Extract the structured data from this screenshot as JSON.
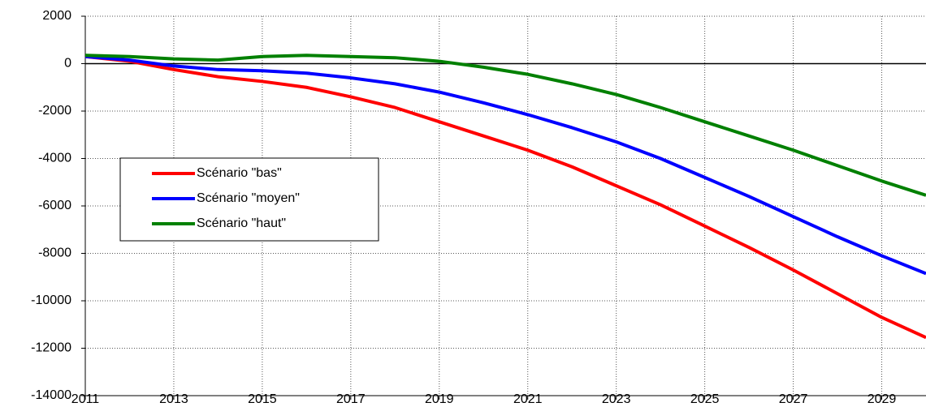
{
  "chart_data": {
    "type": "line",
    "x": [
      2011,
      2012,
      2013,
      2014,
      2015,
      2016,
      2017,
      2018,
      2019,
      2020,
      2021,
      2022,
      2023,
      2024,
      2025,
      2026,
      2027,
      2028,
      2029,
      2030
    ],
    "series": [
      {
        "name": "Scénario \"bas\"",
        "color": "#ff0000",
        "values": [
          300,
          100,
          -250,
          -550,
          -750,
          -1000,
          -1400,
          -1850,
          -2450,
          -3050,
          -3650,
          -4350,
          -5150,
          -5950,
          -6850,
          -7750,
          -8700,
          -9700,
          -10700,
          -11550
        ]
      },
      {
        "name": "Scénario \"moyen\"",
        "color": "#0000ff",
        "values": [
          300,
          150,
          -100,
          -250,
          -300,
          -400,
          -600,
          -850,
          -1200,
          -1650,
          -2150,
          -2700,
          -3300,
          -4000,
          -4800,
          -5600,
          -6450,
          -7300,
          -8100,
          -8850
        ]
      },
      {
        "name": "Scénario \"haut\"",
        "color": "#008000",
        "values": [
          350,
          300,
          200,
          150,
          300,
          350,
          300,
          250,
          100,
          -150,
          -450,
          -850,
          -1300,
          -1850,
          -2450,
          -3050,
          -3650,
          -4300,
          -4950,
          -5550
        ]
      }
    ],
    "xlim": [
      2011,
      2030
    ],
    "xticks": [
      2011,
      2013,
      2015,
      2017,
      2019,
      2021,
      2023,
      2025,
      2027,
      2029
    ],
    "ylim": [
      -14000,
      2000
    ],
    "yticks": [
      -14000,
      -12000,
      -10000,
      -8000,
      -6000,
      -4000,
      -2000,
      0,
      2000
    ],
    "grid": true
  }
}
